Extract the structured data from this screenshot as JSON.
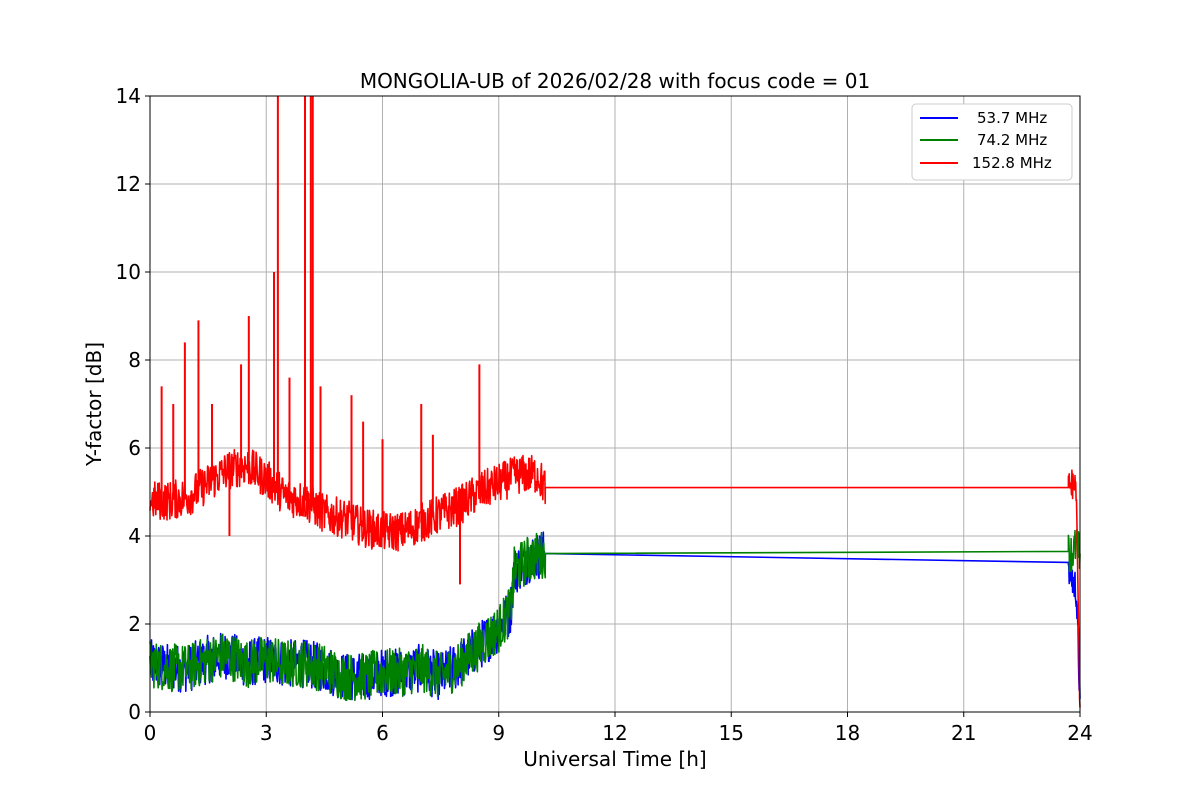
{
  "chart_data": {
    "type": "line",
    "title": "MONGOLIA-UB of 2026/02/28 with focus code = 01",
    "xlabel": "Universal Time [h]",
    "ylabel": "Y-factor [dB]",
    "xlim": [
      0,
      24
    ],
    "ylim": [
      0,
      14
    ],
    "xticks": [
      0,
      3,
      6,
      9,
      12,
      15,
      18,
      21,
      24
    ],
    "yticks": [
      0,
      2,
      4,
      6,
      8,
      10,
      12,
      14
    ],
    "xtick_labels": [
      "0",
      "3",
      "6",
      "9",
      "12",
      "15",
      "18",
      "21",
      "24"
    ],
    "ytick_labels": [
      "0",
      "2",
      "4",
      "6",
      "8",
      "10",
      "12",
      "14"
    ],
    "grid": true,
    "legend_position": "top-right",
    "series": [
      {
        "name": "53.7 MHz",
        "color": "#0000ff",
        "x": [
          0,
          0.5,
          1.0,
          1.5,
          2.0,
          2.5,
          3.0,
          3.5,
          4.0,
          4.5,
          5.0,
          5.5,
          6.0,
          6.5,
          7.0,
          7.5,
          8.0,
          8.5,
          9.0,
          9.3,
          9.4,
          9.8,
          10.2,
          23.7,
          23.8,
          23.9,
          24.0
        ],
        "values": [
          1.1,
          1.0,
          1.0,
          1.2,
          1.3,
          1.1,
          1.2,
          1.1,
          1.1,
          1.0,
          0.8,
          0.8,
          0.9,
          0.9,
          1.0,
          0.8,
          1.1,
          1.5,
          1.9,
          2.3,
          3.2,
          3.5,
          3.6,
          3.4,
          3.0,
          2.8,
          0.3
        ]
      },
      {
        "name": "74.2 MHz",
        "color": "#008000",
        "x": [
          0,
          0.5,
          1.0,
          1.5,
          2.0,
          2.5,
          3.0,
          3.5,
          4.0,
          4.5,
          5.0,
          5.5,
          6.0,
          6.5,
          7.0,
          7.5,
          8.0,
          8.5,
          9.0,
          9.3,
          9.4,
          9.8,
          10.2,
          23.7,
          23.8,
          23.9,
          24.0
        ],
        "values": [
          1.1,
          1.0,
          1.0,
          1.2,
          1.3,
          1.1,
          1.2,
          1.1,
          1.1,
          1.0,
          0.8,
          0.8,
          0.9,
          0.9,
          1.0,
          0.8,
          1.1,
          1.5,
          1.9,
          2.3,
          3.2,
          3.5,
          3.6,
          3.65,
          3.6,
          3.8,
          3.6
        ]
      },
      {
        "name": "152.8 MHz",
        "color": "#ff0000",
        "x": [
          0,
          0.5,
          1.0,
          1.5,
          2.0,
          2.5,
          3.0,
          3.5,
          4.0,
          4.5,
          5.0,
          5.5,
          6.0,
          6.5,
          7.0,
          7.5,
          8.0,
          8.5,
          9.0,
          9.5,
          10.0,
          10.2,
          23.7,
          23.8,
          23.9,
          24.0
        ],
        "values": [
          4.8,
          4.8,
          4.9,
          5.2,
          5.5,
          5.6,
          5.3,
          4.9,
          4.8,
          4.5,
          4.4,
          4.2,
          4.1,
          4.1,
          4.3,
          4.5,
          4.7,
          5.0,
          5.2,
          5.4,
          5.4,
          5.1,
          5.1,
          5.2,
          5.1,
          0.1
        ]
      }
    ],
    "annotations": {
      "red_spikes": [
        {
          "x": 0.3,
          "y": 7.4
        },
        {
          "x": 0.6,
          "y": 7.0
        },
        {
          "x": 0.9,
          "y": 8.4
        },
        {
          "x": 1.25,
          "y": 8.9
        },
        {
          "x": 1.6,
          "y": 7.0
        },
        {
          "x": 2.05,
          "y": 4.0
        },
        {
          "x": 2.55,
          "y": 9.0
        },
        {
          "x": 2.35,
          "y": 7.9
        },
        {
          "x": 3.2,
          "y": 10.0
        },
        {
          "x": 3.3,
          "y": 14.0
        },
        {
          "x": 3.6,
          "y": 7.6
        },
        {
          "x": 4.0,
          "y": 14.0
        },
        {
          "x": 4.15,
          "y": 14.0
        },
        {
          "x": 4.2,
          "y": 14.0
        },
        {
          "x": 4.4,
          "y": 7.4
        },
        {
          "x": 5.2,
          "y": 7.2
        },
        {
          "x": 5.5,
          "y": 6.6
        },
        {
          "x": 6.0,
          "y": 6.2
        },
        {
          "x": 7.0,
          "y": 7.0
        },
        {
          "x": 7.3,
          "y": 6.3
        },
        {
          "x": 8.0,
          "y": 2.9
        },
        {
          "x": 8.5,
          "y": 7.9
        }
      ]
    }
  }
}
